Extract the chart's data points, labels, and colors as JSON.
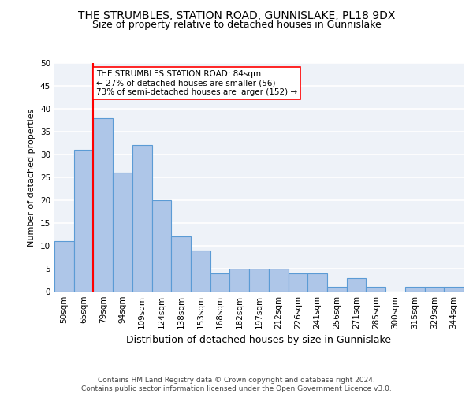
{
  "title1": "THE STRUMBLES, STATION ROAD, GUNNISLAKE, PL18 9DX",
  "title2": "Size of property relative to detached houses in Gunnislake",
  "xlabel": "Distribution of detached houses by size in Gunnislake",
  "ylabel": "Number of detached properties",
  "categories": [
    "50sqm",
    "65sqm",
    "79sqm",
    "94sqm",
    "109sqm",
    "124sqm",
    "138sqm",
    "153sqm",
    "168sqm",
    "182sqm",
    "197sqm",
    "212sqm",
    "226sqm",
    "241sqm",
    "256sqm",
    "271sqm",
    "285sqm",
    "300sqm",
    "315sqm",
    "329sqm",
    "344sqm"
  ],
  "values": [
    11,
    31,
    38,
    26,
    32,
    20,
    12,
    9,
    4,
    5,
    5,
    5,
    4,
    4,
    1,
    3,
    1,
    0,
    1,
    1,
    1
  ],
  "bar_color": "#aec6e8",
  "bar_edge_color": "#5b9bd5",
  "bg_color": "#eef2f8",
  "grid_color": "#ffffff",
  "annotation_text": "THE STRUMBLES STATION ROAD: 84sqm\n← 27% of detached houses are smaller (56)\n73% of semi-detached houses are larger (152) →",
  "vline_color": "red",
  "ylim": [
    0,
    50
  ],
  "yticks": [
    0,
    5,
    10,
    15,
    20,
    25,
    30,
    35,
    40,
    45,
    50
  ],
  "footer": "Contains HM Land Registry data © Crown copyright and database right 2024.\nContains public sector information licensed under the Open Government Licence v3.0.",
  "annotation_box_color": "#ffffff",
  "annotation_box_edgecolor": "red",
  "title1_fontsize": 10,
  "title2_fontsize": 9,
  "ylabel_fontsize": 8,
  "xlabel_fontsize": 9,
  "tick_fontsize": 7.5,
  "footer_fontsize": 6.5
}
